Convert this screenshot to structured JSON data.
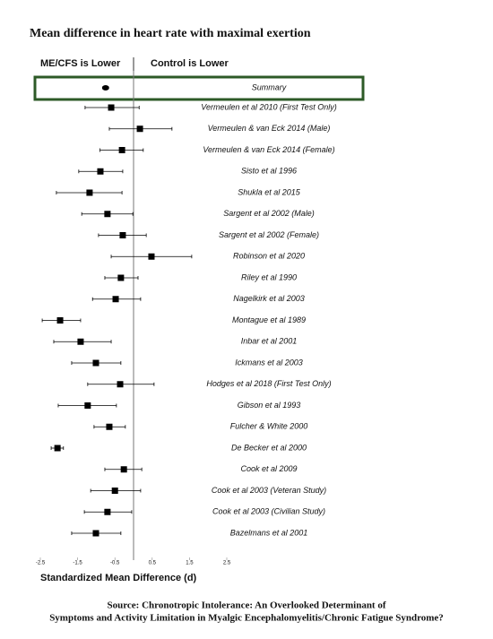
{
  "chart_data": {
    "type": "forest",
    "title": "Mean difference in heart rate with maximal exertion",
    "left_header": "ME/CFS is Lower",
    "right_header": "Control is Lower",
    "summary": {
      "name": "Summary",
      "value": -0.75,
      "lower": -0.82,
      "upper": -0.68
    },
    "categories": [
      "Vermeulen et al 2010 (First Test Only)",
      "Vermeulen & van Eck 2014 (Male)",
      "Vermeulen & van Eck 2014 (Female)",
      "Sisto et al 1996",
      "Shukla et al 2015",
      "Sargent et al 2002 (Male)",
      "Sargent et al 2002 (Female)",
      "Robinson et al 2020",
      "Riley et al 1990",
      "Nagelkirk et al 2003",
      "Montague et al 1989",
      "Inbar et al 2001",
      "Ickmans et al 2003",
      "Hodges et al 2018 (First Test Only)",
      "Gibson et al 1993",
      "Fulcher & White 2000",
      "De Becker et al 2000",
      "Cook et al 2009",
      "Cook et al 2003 (Veteran Study)",
      "Cook et al 2003 (Civilian Study)",
      "Bazelmans et al 2001"
    ],
    "values": [
      -0.6,
      0.17,
      -0.31,
      -0.89,
      -1.18,
      -0.7,
      -0.29,
      0.48,
      -0.34,
      -0.48,
      -1.97,
      -1.42,
      -1.01,
      -0.36,
      -1.23,
      -0.65,
      -2.04,
      -0.26,
      -0.5,
      -0.7,
      -1.01
    ],
    "lower": [
      -1.3,
      -0.65,
      -0.9,
      -1.47,
      -2.07,
      -1.39,
      -0.94,
      -0.6,
      -0.77,
      -1.1,
      -2.45,
      -2.14,
      -1.66,
      -1.23,
      -2.02,
      -1.06,
      -2.21,
      -0.77,
      -1.15,
      -1.32,
      -1.66
    ],
    "upper": [
      0.15,
      1.03,
      0.26,
      -0.29,
      -0.31,
      -0.02,
      0.34,
      1.56,
      0.12,
      0.19,
      -1.42,
      -0.6,
      -0.34,
      0.55,
      -0.46,
      -0.22,
      -1.88,
      0.22,
      0.19,
      -0.05,
      -0.34
    ],
    "xlim": [
      -2.5,
      2.5
    ],
    "xticks": [
      -2.5,
      -1.5,
      -0.5,
      0.5,
      1.5,
      2.5
    ],
    "xlabel": "Standardized Mean Difference (d)",
    "color": "#000000",
    "summary_box_color": "#2d5a27",
    "source": [
      "Source: Chronotropic Intolerance: An Overlooked Determinant of",
      "Symptoms and Activity Limitation in Myalgic Encephalomyelitis/Chronic Fatigue Syndrome?"
    ]
  }
}
